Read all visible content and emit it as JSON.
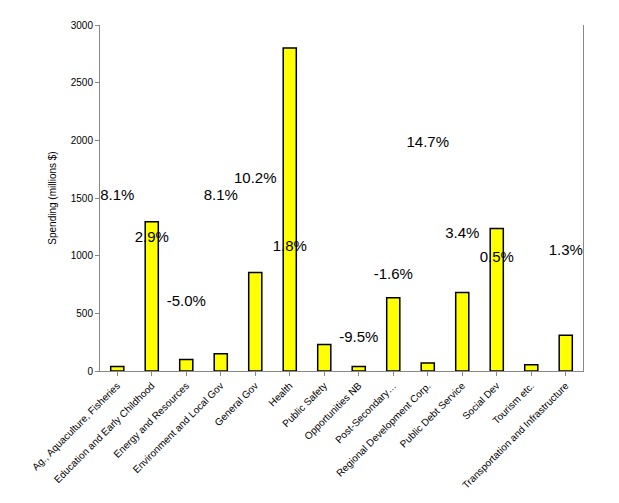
{
  "chart_data": {
    "type": "bar",
    "y_label": "Spending (millions $)",
    "categories": [
      "Ag., Aquaculture, Fisheries",
      "Education and Early Childhood",
      "Energy and Resources",
      "Environment and Local Gov",
      "General Gov",
      "Health",
      "Public Safety",
      "Opportunities NB",
      "Post-Secondary…",
      "Regional Development Corp.",
      "Public Debt Service",
      "Social Dev",
      "Tourism etc.",
      "Transportation and Infrastructure"
    ],
    "series": [
      {
        "type": "bar",
        "color": "#ffff00",
        "values": [
          40,
          1295,
          100,
          150,
          855,
          2800,
          230,
          40,
          635,
          70,
          680,
          1235,
          55,
          310
        ]
      },
      {
        "type": "scatter",
        "axis": "y2",
        "marker": "none",
        "data_labels": true,
        "values": [
          8.1,
          2.9,
          -5.0,
          8.1,
          10.2,
          1.8,
          null,
          -9.5,
          -1.6,
          14.7,
          3.4,
          0.5,
          null,
          1.3
        ],
        "value_labels": [
          "8.1%",
          "2.9%",
          "-5.0%",
          "8.1%",
          "10.2%",
          "1.8%",
          null,
          "-9.5%",
          "-1.6%",
          "14.7%",
          "3.4%",
          "0.5%",
          null,
          "1.3%"
        ]
      }
    ],
    "ylim": [
      0,
      3000
    ],
    "yticks": [
      0,
      500,
      1000,
      1500,
      2000,
      2500,
      3000
    ],
    "y2lim": [
      -13.5,
      29.3
    ],
    "grid": false
  }
}
